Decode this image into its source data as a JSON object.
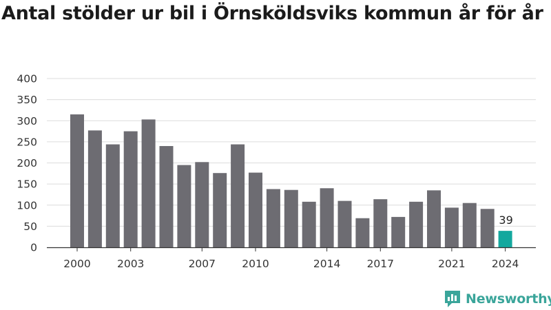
{
  "title": "Antal stölder ur bil i Örnsköldsviks kommun år för år",
  "brand": "Newsworthy",
  "colors": {
    "bar": "#6d6c72",
    "highlight": "#13a89e",
    "grid": "#dcdcdc",
    "axis": "#333333",
    "brand": "#3aa59a"
  },
  "chart_data": {
    "type": "bar",
    "title": "Antal stölder ur bil i Örnsköldsviks kommun år för år",
    "xlabel": "",
    "ylabel": "",
    "ylim": [
      0,
      400
    ],
    "yticks": [
      0,
      50,
      100,
      150,
      200,
      250,
      300,
      350,
      400
    ],
    "xticks": [
      "2000",
      "2003",
      "2007",
      "2010",
      "2014",
      "2017",
      "2021",
      "2024"
    ],
    "grid": true,
    "categories": [
      "2000",
      "2001",
      "2002",
      "2003",
      "2004",
      "2005",
      "2006",
      "2007",
      "2008",
      "2009",
      "2010",
      "2011",
      "2012",
      "2013",
      "2014",
      "2015",
      "2016",
      "2017",
      "2018",
      "2019",
      "2020",
      "2021",
      "2022",
      "2023",
      "2024"
    ],
    "values": [
      315,
      277,
      244,
      275,
      303,
      240,
      195,
      202,
      176,
      244,
      177,
      138,
      136,
      108,
      140,
      110,
      69,
      114,
      72,
      108,
      135,
      94,
      105,
      91,
      39
    ],
    "highlight_index": 24,
    "data_labels": [
      {
        "category": "2024",
        "text": "39"
      }
    ]
  }
}
